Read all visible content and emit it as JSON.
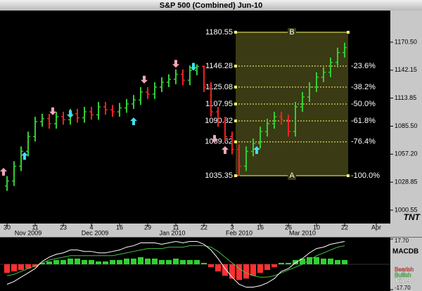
{
  "chart_data": {
    "type": "ohlc",
    "title": "S&P 500 (Combined) Jun-10",
    "xlim": [
      0,
      111
    ],
    "xticks": [
      {
        "value": 2,
        "label": "30"
      },
      {
        "value": 10,
        "label": "11"
      },
      {
        "value": 18,
        "label": "23"
      },
      {
        "value": 26,
        "label": "4"
      },
      {
        "value": 34,
        "label": "16"
      },
      {
        "value": 42,
        "label": "29"
      },
      {
        "value": 50,
        "label": "11"
      },
      {
        "value": 58,
        "label": "22"
      },
      {
        "value": 66,
        "label": "3"
      },
      {
        "value": 74,
        "label": "16"
      },
      {
        "value": 82,
        "label": "26"
      },
      {
        "value": 90,
        "label": "10"
      },
      {
        "value": 98,
        "label": "22"
      },
      {
        "value": 107,
        "label": "Apr"
      }
    ],
    "month_labels": [
      {
        "value": 8,
        "label": "Nov 2009"
      },
      {
        "value": 27,
        "label": "Dec 2009"
      },
      {
        "value": 49,
        "label": "Jan 2010"
      },
      {
        "value": 68,
        "label": "Feb 2010"
      },
      {
        "value": 86,
        "label": "Mar 2010"
      }
    ],
    "ylim": [
      987,
      1202.5
    ],
    "yticks": [
      {
        "value": 1170.5,
        "label": "1170.50"
      },
      {
        "value": 1142.15,
        "label": "1142.15"
      },
      {
        "value": 1113.85,
        "label": "1113.85"
      },
      {
        "value": 1085.5,
        "label": "1085.50"
      },
      {
        "value": 1057.2,
        "label": "1057.20"
      },
      {
        "value": 1028.85,
        "label": "1028.85"
      },
      {
        "value": 1000.55,
        "label": "1000.55"
      }
    ],
    "up_color": "#33cc33",
    "down_color": "#ee2222",
    "bars": {
      "x": [
        2,
        4,
        6,
        8,
        10,
        12,
        14,
        16,
        18,
        20,
        22,
        24,
        26,
        28,
        30,
        32,
        34,
        36,
        38,
        40,
        42,
        44,
        46,
        48,
        50,
        52,
        54,
        56,
        58,
        60,
        62,
        64,
        66,
        68,
        70,
        72,
        74,
        76,
        78,
        80,
        82,
        84,
        86,
        88,
        90,
        92,
        94,
        96,
        98
      ],
      "open": [
        1025,
        1030,
        1045,
        1060,
        1075,
        1090,
        1093,
        1088,
        1095,
        1092,
        1098,
        1094,
        1100,
        1097,
        1105,
        1102,
        1100,
        1104,
        1108,
        1112,
        1120,
        1118,
        1125,
        1130,
        1133,
        1138,
        1132,
        1142,
        1146,
        1125,
        1100,
        1090,
        1075,
        1062,
        1045,
        1060,
        1068,
        1080,
        1088,
        1095,
        1092,
        1080,
        1105,
        1115,
        1125,
        1135,
        1140,
        1150,
        1160
      ],
      "high": [
        1035,
        1050,
        1065,
        1080,
        1095,
        1098,
        1098,
        1100,
        1100,
        1103,
        1103,
        1105,
        1105,
        1110,
        1110,
        1107,
        1109,
        1113,
        1117,
        1125,
        1125,
        1130,
        1135,
        1138,
        1143,
        1143,
        1147,
        1148,
        1147,
        1130,
        1105,
        1095,
        1080,
        1067,
        1065,
        1073,
        1085,
        1093,
        1100,
        1100,
        1097,
        1110,
        1120,
        1130,
        1140,
        1145,
        1155,
        1165,
        1170
      ],
      "low": [
        1020,
        1025,
        1040,
        1055,
        1070,
        1085,
        1083,
        1083,
        1087,
        1087,
        1089,
        1089,
        1092,
        1092,
        1097,
        1095,
        1095,
        1099,
        1103,
        1107,
        1113,
        1113,
        1120,
        1125,
        1128,
        1127,
        1127,
        1137,
        1120,
        1095,
        1085,
        1070,
        1057,
        1035,
        1040,
        1055,
        1063,
        1075,
        1083,
        1087,
        1075,
        1075,
        1100,
        1110,
        1120,
        1130,
        1135,
        1145,
        1155
      ],
      "close": [
        1030,
        1045,
        1060,
        1075,
        1090,
        1093,
        1088,
        1095,
        1092,
        1098,
        1094,
        1100,
        1097,
        1105,
        1102,
        1100,
        1104,
        1108,
        1112,
        1120,
        1118,
        1125,
        1130,
        1133,
        1138,
        1132,
        1142,
        1146,
        1125,
        1100,
        1090,
        1075,
        1062,
        1045,
        1060,
        1068,
        1080,
        1088,
        1095,
        1092,
        1080,
        1105,
        1115,
        1125,
        1135,
        1140,
        1150,
        1160,
        1165
      ]
    },
    "signals": [
      {
        "x": 1,
        "y": 1039,
        "direction": "up",
        "color": "#f4a6b8"
      },
      {
        "x": 7,
        "y": 1055,
        "direction": "up",
        "color": "#40e0f0"
      },
      {
        "x": 15,
        "y": 1101,
        "direction": "down",
        "color": "#f4a6b8"
      },
      {
        "x": 20,
        "y": 1098,
        "direction": "down",
        "color": "#40e0f0"
      },
      {
        "x": 38,
        "y": 1090,
        "direction": "up",
        "color": "#40e0f0"
      },
      {
        "x": 41,
        "y": 1133,
        "direction": "down",
        "color": "#f4a6b8"
      },
      {
        "x": 50,
        "y": 1149,
        "direction": "down",
        "color": "#f4a6b8"
      },
      {
        "x": 55,
        "y": 1146,
        "direction": "down",
        "color": "#40e0f0"
      },
      {
        "x": 61,
        "y": 1073,
        "direction": "down",
        "color": "#f4a6b8"
      },
      {
        "x": 64,
        "y": 1061,
        "direction": "up",
        "color": "#f4a6b8"
      },
      {
        "x": 73,
        "y": 1061,
        "direction": "up",
        "color": "#40e0f0"
      }
    ],
    "fibonacci": {
      "x_range": [
        67,
        99
      ],
      "levels": [
        1180.55,
        1146.28,
        1125.08,
        1107.95,
        1090.82,
        1069.62,
        1035.35
      ],
      "ratios": [
        null,
        "-23.6%",
        "-38.2%",
        "-50.0%",
        "-61.8%",
        "-76.4%",
        "-100.0%"
      ],
      "high_label": "B",
      "low_label": "A",
      "color": "#ffff66"
    },
    "macd": {
      "title": "MACDB",
      "ylim": [
        -17.7,
        17.7
      ],
      "yticks": [
        {
          "value": 17.7,
          "label": "17.70"
        },
        {
          "value": -17.7,
          "label": "-17.70"
        }
      ],
      "histogram": [
        -6,
        -5,
        -4,
        -3,
        -2,
        1,
        2,
        3,
        3,
        4,
        4,
        3,
        3,
        2,
        2,
        3,
        3,
        4,
        4,
        5,
        4,
        4,
        3,
        3,
        4,
        3,
        3,
        3,
        1,
        -2,
        -5,
        -8,
        -10,
        -11,
        -10,
        -8,
        -6,
        -4,
        -2,
        1,
        1,
        3,
        4,
        5,
        5,
        4,
        4,
        3,
        3
      ],
      "macd": [
        -14,
        -12,
        -9,
        -6,
        -3,
        2,
        5,
        7,
        8,
        10,
        10,
        9,
        9,
        8,
        8,
        9,
        10,
        12,
        13,
        15,
        15,
        15,
        14,
        15,
        16,
        15,
        16,
        16,
        14,
        10,
        4,
        -3,
        -9,
        -14,
        -16,
        -16,
        -15,
        -13,
        -10,
        -5,
        -3,
        1,
        4,
        8,
        11,
        12,
        14,
        15,
        16
      ],
      "signal": [
        -8,
        -7,
        -5,
        -3,
        -1,
        1,
        3,
        4,
        5,
        6,
        6,
        6,
        6,
        6,
        6,
        6,
        7,
        8,
        9,
        10,
        11,
        11,
        11,
        12,
        12,
        12,
        13,
        13,
        13,
        12,
        9,
        5,
        1,
        -3,
        -6,
        -8,
        -9,
        -9,
        -8,
        -6,
        -4,
        -2,
        0,
        3,
        6,
        8,
        10,
        12,
        13
      ],
      "macd_color": "#ffffff",
      "signal_color": "#40c040",
      "legend": [
        {
          "name": "Bearish",
          "color": "#ff3030"
        },
        {
          "name": "Bullish",
          "color": "#30d030"
        },
        {
          "name": "Trig. 9",
          "color": "#ffffff"
        }
      ]
    },
    "logo": "TNT"
  }
}
